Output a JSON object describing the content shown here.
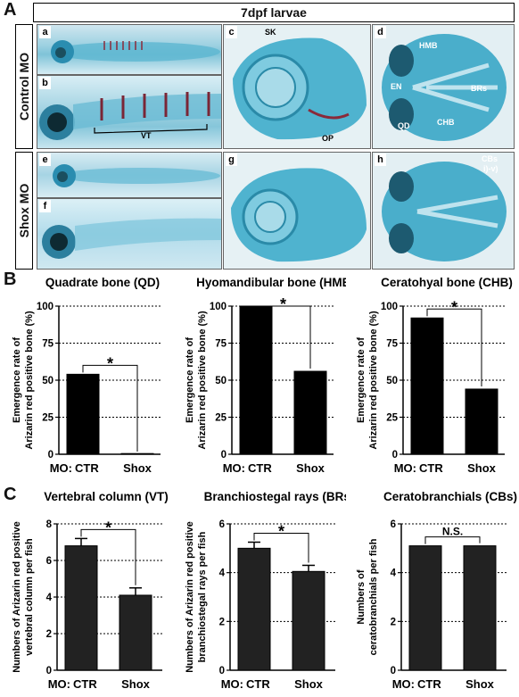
{
  "figure": {
    "panel_letters": [
      "A",
      "B",
      "C"
    ],
    "header": "7dpf larvae",
    "rows": [
      "Control MO",
      "Shox MO"
    ],
    "image_panels": {
      "a": {
        "letter": "a"
      },
      "b": {
        "letter": "b",
        "labels": [
          "VT"
        ]
      },
      "c": {
        "letter": "c",
        "labels": [
          "SK",
          "OP"
        ]
      },
      "d": {
        "letter": "d",
        "labels": [
          "HMB",
          "EN",
          "BRs",
          "QD",
          "CHB"
        ]
      },
      "e": {
        "letter": "e"
      },
      "f": {
        "letter": "f"
      },
      "g": {
        "letter": "g"
      },
      "h": {
        "letter": "h",
        "labels": [
          "CBs",
          "i)-v)"
        ]
      }
    }
  },
  "chart_data": [
    {
      "id": "qd",
      "type": "bar",
      "title": "Quadrate bone (QD)",
      "ylabel_lines": [
        "Emergence rate of",
        "Arizarin red positive bone (%)"
      ],
      "xlabel_prefix": "MO:",
      "categories": [
        "CTR",
        "Shox"
      ],
      "values": [
        54,
        0
      ],
      "ylim": [
        0,
        100
      ],
      "yticks": [
        "0",
        "25",
        "50",
        "75",
        "100"
      ],
      "significance": "*",
      "error_bars": false,
      "grid": "dotted"
    },
    {
      "id": "hmb",
      "type": "bar",
      "title": "Hyomandibular bone (HMB)",
      "ylabel_lines": [
        "Emergence rate of",
        "Arizarin red positive bone (%)"
      ],
      "xlabel_prefix": "MO:",
      "categories": [
        "CTR",
        "Shox"
      ],
      "values": [
        100,
        56
      ],
      "ylim": [
        0,
        100
      ],
      "yticks": [
        "0",
        "25",
        "50",
        "75",
        "100"
      ],
      "significance": "*",
      "error_bars": false,
      "grid": "dotted"
    },
    {
      "id": "chb",
      "type": "bar",
      "title": "Ceratohyal bone (CHB)",
      "ylabel_lines": [
        "Emergence rate of",
        "Arizarin red positive bone (%)"
      ],
      "xlabel_prefix": "MO:",
      "categories": [
        "CTR",
        "Shox"
      ],
      "values": [
        92,
        44
      ],
      "ylim": [
        0,
        100
      ],
      "yticks": [
        "0",
        "25",
        "50",
        "75",
        "100"
      ],
      "significance": "*",
      "error_bars": false,
      "grid": "dotted"
    },
    {
      "id": "vt",
      "type": "bar",
      "title": "Vertebral column (VT)",
      "ylabel_lines": [
        "Numbers of Arizarin red positive",
        "vertebral column per fish"
      ],
      "xlabel_prefix": "MO:",
      "categories": [
        "CTR",
        "Shox"
      ],
      "values": [
        6.8,
        4.1
      ],
      "errors": [
        0.4,
        0.4
      ],
      "ylim": [
        0,
        8
      ],
      "yticks": [
        "0",
        "2",
        "4",
        "6",
        "8"
      ],
      "significance": "*",
      "error_bars": true,
      "grid": "dotted"
    },
    {
      "id": "brs",
      "type": "bar",
      "title": "Branchiostegal rays (BRs)",
      "ylabel_lines": [
        "Numbers of Arizarin red positive",
        "branchiostegal rays per fish"
      ],
      "xlabel_prefix": "MO:",
      "categories": [
        "CTR",
        "Shox"
      ],
      "values": [
        5.0,
        4.05
      ],
      "errors": [
        0.25,
        0.25
      ],
      "ylim": [
        0,
        6
      ],
      "yticks": [
        "0",
        "2",
        "4",
        "6"
      ],
      "significance": "*",
      "error_bars": true,
      "grid": "dotted"
    },
    {
      "id": "cbs",
      "type": "bar",
      "title": "Ceratobranchials (CBs)",
      "ylabel_lines": [
        "Numbers of",
        "ceratobranchials per fish"
      ],
      "xlabel_prefix": "MO:",
      "categories": [
        "CTR",
        "Shox"
      ],
      "values": [
        5.1,
        5.1
      ],
      "errors": [
        0,
        0
      ],
      "ylim": [
        0,
        6
      ],
      "yticks": [
        "0",
        "2",
        "4",
        "6"
      ],
      "significance": "N.S.",
      "error_bars": true,
      "grid": "dotted"
    }
  ]
}
